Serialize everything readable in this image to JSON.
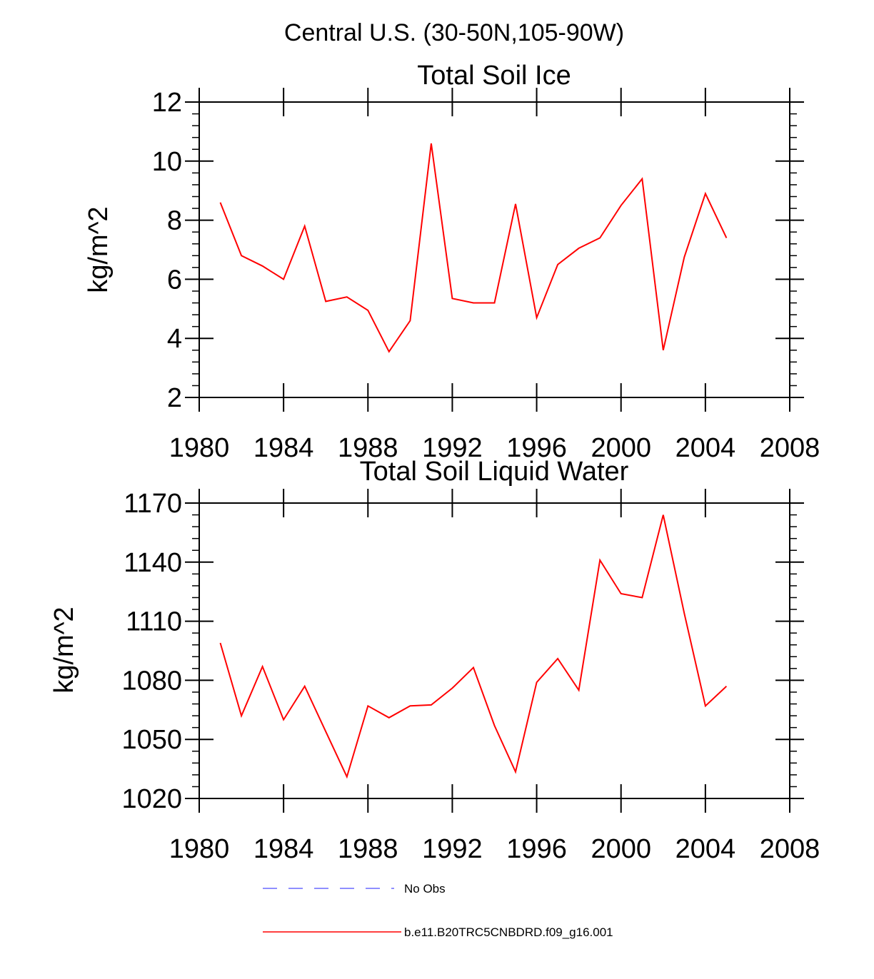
{
  "figure": {
    "suptitle": "Central U.S. (30-50N,105-90W)"
  },
  "chart_data": [
    {
      "type": "line",
      "title": "Total Soil Ice",
      "xlabel": "",
      "ylabel": "kg/m^2",
      "xlim": [
        1980,
        2008
      ],
      "ylim": [
        2,
        12
      ],
      "xticks": [
        1980,
        1984,
        1988,
        1992,
        1996,
        2000,
        2004,
        2008
      ],
      "yticks": [
        2,
        4,
        6,
        8,
        10,
        12
      ],
      "xtick_labels": [
        "1980",
        "1984",
        "1988",
        "1992",
        "1996",
        "2000",
        "2004",
        "2008"
      ],
      "ytick_labels": [
        "2",
        "4",
        "6",
        "8",
        "10",
        "12"
      ],
      "grid": false,
      "series": [
        {
          "name": "b.e11.B20TRC5CNBDRD.f09_g16.001",
          "color": "#ff0000",
          "x": [
            1981,
            1982,
            1983,
            1984,
            1985,
            1986,
            1987,
            1988,
            1989,
            1990,
            1991,
            1992,
            1993,
            1994,
            1995,
            1996,
            1997,
            1998,
            1999,
            2000,
            2001,
            2002,
            2003,
            2004,
            2005
          ],
          "values": [
            8.6,
            6.8,
            6.45,
            6.0,
            7.8,
            5.25,
            5.4,
            4.95,
            3.55,
            4.6,
            10.6,
            5.35,
            5.2,
            5.2,
            8.55,
            4.7,
            6.5,
            7.05,
            7.4,
            8.5,
            9.4,
            3.6,
            6.75,
            8.9,
            7.4
          ]
        }
      ]
    },
    {
      "type": "line",
      "title": "Total Soil Liquid Water",
      "xlabel": "",
      "ylabel": "kg/m^2",
      "xlim": [
        1980,
        2008
      ],
      "ylim": [
        1020,
        1170
      ],
      "xticks": [
        1980,
        1984,
        1988,
        1992,
        1996,
        2000,
        2004,
        2008
      ],
      "yticks": [
        1020,
        1050,
        1080,
        1110,
        1140,
        1170
      ],
      "xtick_labels": [
        "1980",
        "1984",
        "1988",
        "1992",
        "1996",
        "2000",
        "2004",
        "2008"
      ],
      "ytick_labels": [
        "1020",
        "1050",
        "1080",
        "1110",
        "1140",
        "1170"
      ],
      "grid": false,
      "series": [
        {
          "name": "b.e11.B20TRC5CNBDRD.f09_g16.001",
          "color": "#ff0000",
          "x": [
            1981,
            1982,
            1983,
            1984,
            1985,
            1986,
            1987,
            1988,
            1989,
            1990,
            1991,
            1992,
            1993,
            1994,
            1995,
            1996,
            1997,
            1998,
            1999,
            2000,
            2001,
            2002,
            2003,
            2004,
            2005
          ],
          "values": [
            1099,
            1062,
            1087,
            1060,
            1077,
            1054,
            1031,
            1067,
            1061,
            1067,
            1067.5,
            1076,
            1086.5,
            1057,
            1033.5,
            1079,
            1091,
            1075,
            1141,
            1124,
            1122,
            1164,
            1114,
            1067,
            1077
          ]
        }
      ]
    }
  ],
  "legend": {
    "placement": "bottom-center",
    "items": [
      {
        "label": "No Obs",
        "color": "#6a6aff",
        "style": "dashed"
      },
      {
        "label": "b.e11.B20TRC5CNBDRD.f09_g16.001",
        "color": "#ff0000",
        "style": "solid"
      }
    ]
  }
}
